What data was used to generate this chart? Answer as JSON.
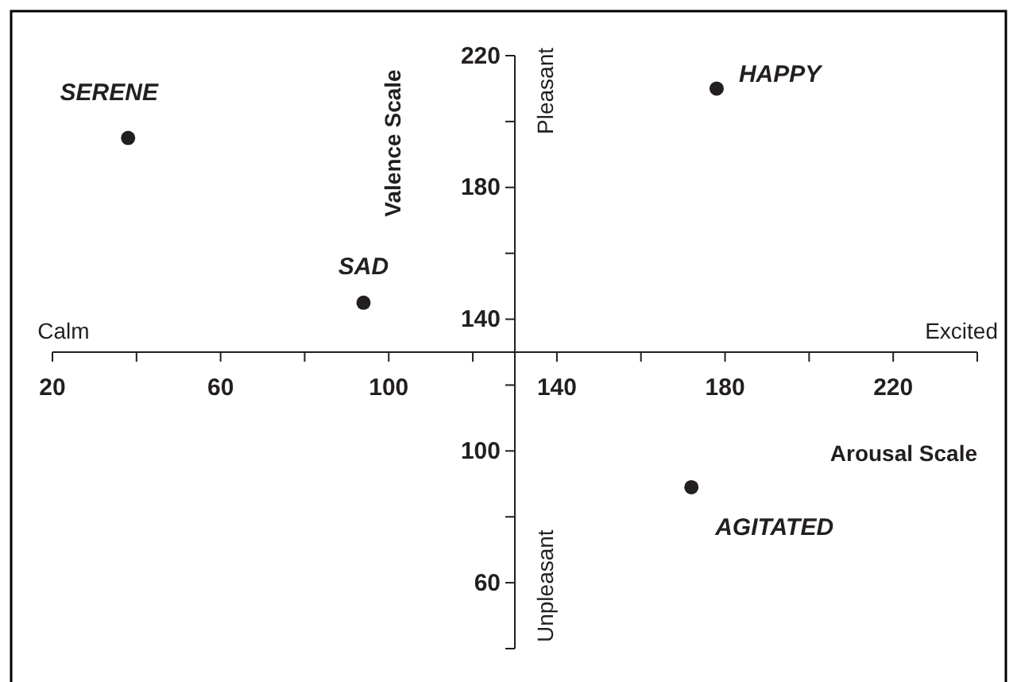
{
  "chart_data": {
    "type": "scatter",
    "xlabel": "Arousal Scale",
    "ylabel": "Valence Scale",
    "marker": "circle",
    "xlim": [
      20,
      240
    ],
    "ylim": [
      40,
      220
    ],
    "xticks": [
      20,
      60,
      100,
      140,
      180,
      220
    ],
    "yticks": [
      60,
      100,
      140,
      180,
      220
    ],
    "series": [
      {
        "color": "#231f20",
        "x": [
          38,
          94,
          178,
          172
        ],
        "values": [
          195,
          145,
          210,
          89
        ]
      }
    ],
    "annotations": [
      {
        "text": "SERENE",
        "x": 38,
        "y": 195
      },
      {
        "text": "SAD",
        "x": 94,
        "y": 145
      },
      {
        "text": "HAPPY",
        "x": 178,
        "y": 210
      },
      {
        "text": "AGITATED",
        "x": 172,
        "y": 89
      },
      "Calm",
      "Excited",
      "Pleasant",
      "Unpleasant"
    ]
  }
}
